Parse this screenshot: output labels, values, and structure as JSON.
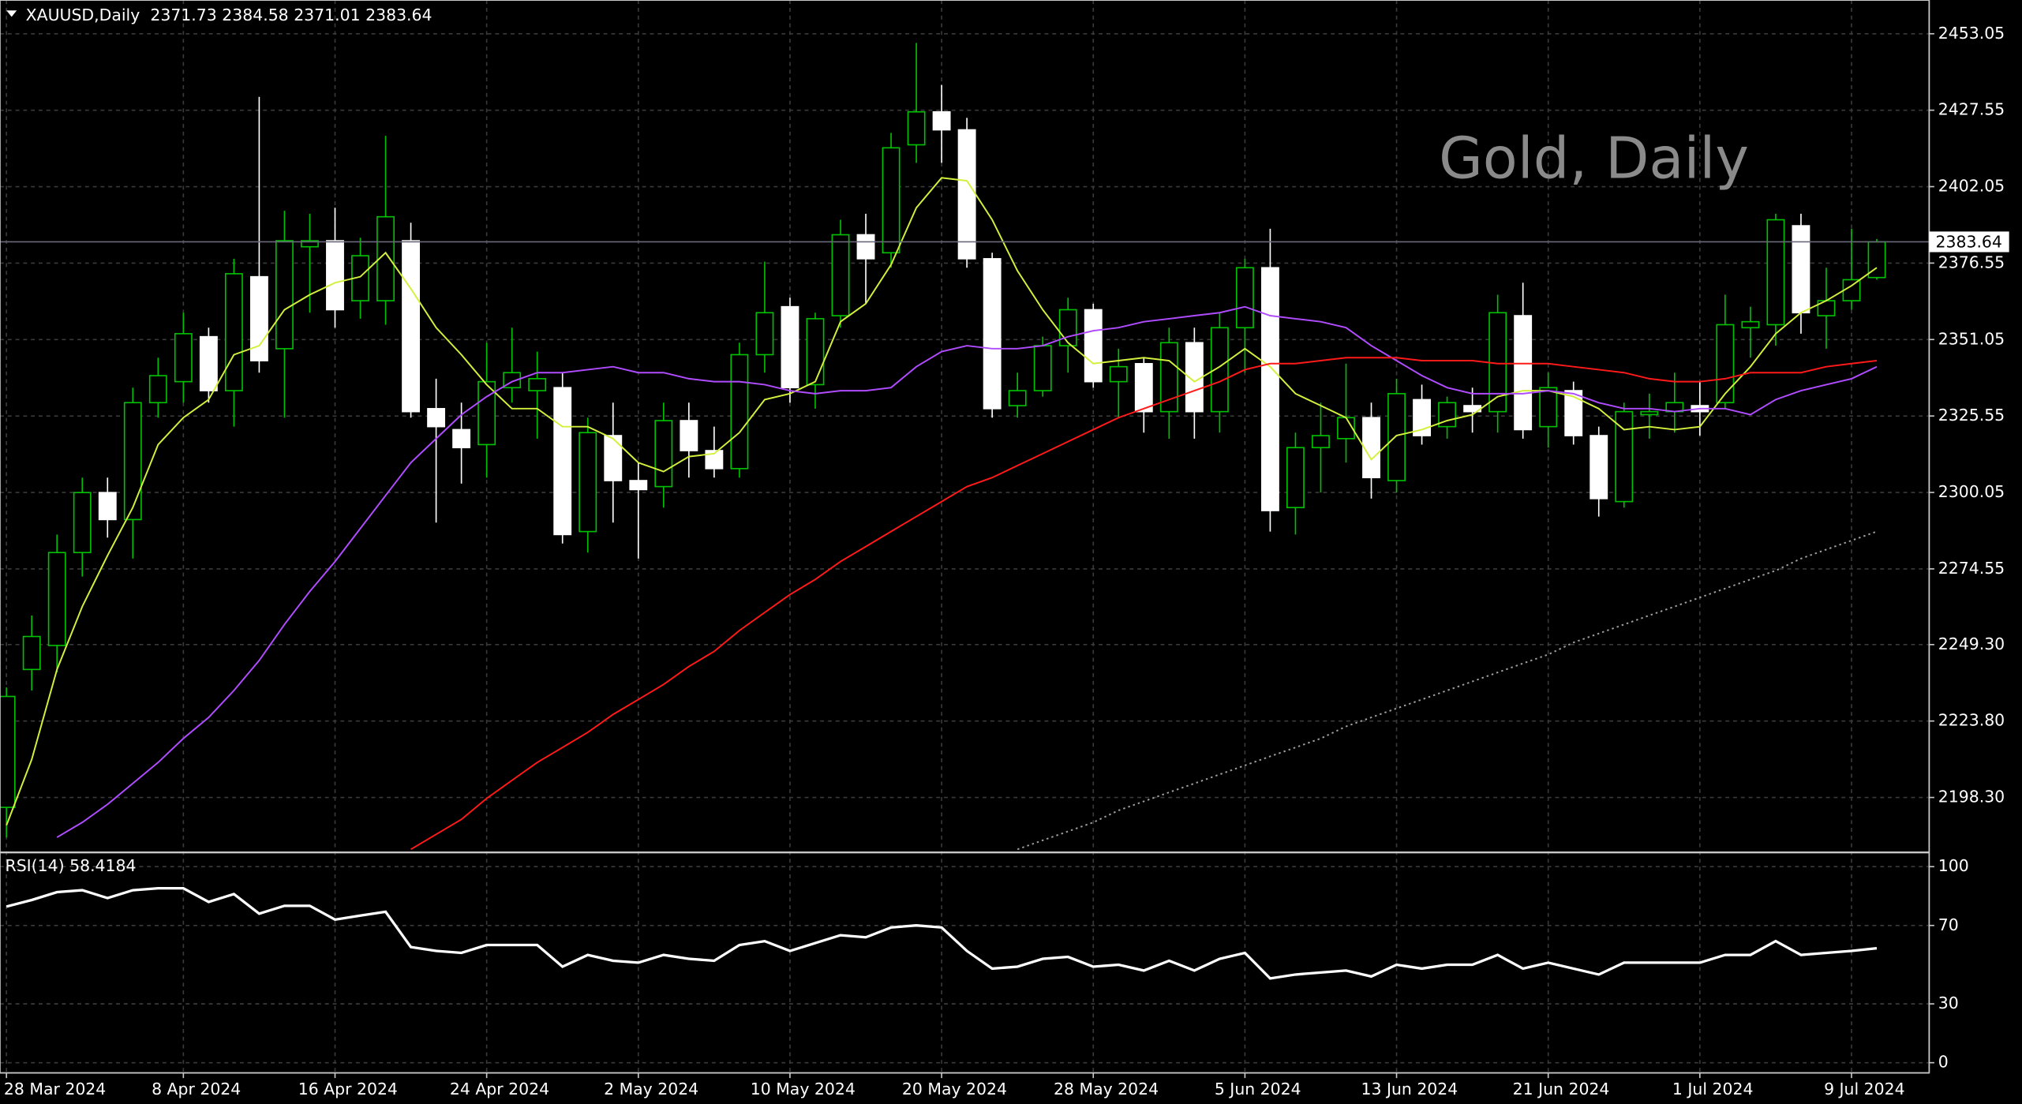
{
  "chart_data": [
    {
      "type": "candlestick",
      "symbol": "XAUUSD,Daily",
      "watermark": "Gold, Daily",
      "categories": [
        "28 Mar 2024",
        null,
        null,
        null,
        null,
        null,
        null,
        "8 Apr 2024",
        null,
        null,
        null,
        null,
        null,
        "16 Apr 2024",
        null,
        null,
        null,
        null,
        null,
        "24 Apr 2024",
        null,
        null,
        null,
        null,
        null,
        "2 May 2024",
        null,
        null,
        null,
        null,
        null,
        "10 May 2024",
        null,
        null,
        null,
        null,
        null,
        "20 May 2024",
        null,
        null,
        null,
        null,
        null,
        "28 May 2024",
        null,
        null,
        null,
        null,
        null,
        "5 Jun 2024",
        null,
        null,
        null,
        null,
        null,
        "13 Jun 2024",
        null,
        null,
        null,
        null,
        null,
        "21 Jun 2024",
        null,
        null,
        null,
        null,
        null,
        "1 Jul 2024",
        null,
        null,
        null,
        null,
        null,
        "9 Jul 2024",
        null
      ],
      "open": [
        2195,
        2241,
        2249,
        2280,
        2300,
        2291,
        2330,
        2337,
        2352,
        2334,
        2372,
        2348,
        2382,
        2384,
        2364,
        2364,
        2384,
        2328,
        2321,
        2316,
        2335,
        2334,
        2335,
        2287,
        2319,
        2304,
        2302,
        2324,
        2314,
        2308,
        2346,
        2362,
        2336,
        2359,
        2386,
        2380,
        2416,
        2427,
        2421,
        2378,
        2329,
        2334,
        2349,
        2361,
        2337,
        2343,
        2327,
        2350,
        2327,
        2355,
        2375,
        2295,
        2315,
        2318,
        2325,
        2304,
        2331,
        2322,
        2329,
        2327,
        2359,
        2322,
        2334,
        2319,
        2297,
        2326,
        2327,
        2329,
        2330,
        2355,
        2356,
        2389,
        2359,
        2364,
        2371.73
      ],
      "high": [
        2235,
        2259,
        2286,
        2305,
        2305,
        2335,
        2345,
        2360,
        2355,
        2378,
        2432,
        2394,
        2393,
        2395,
        2385,
        2419,
        2390,
        2338,
        2330,
        2350,
        2355,
        2347,
        2340,
        2325,
        2330,
        2310,
        2330,
        2330,
        2322,
        2350,
        2377,
        2365,
        2360,
        2391,
        2393,
        2420,
        2450,
        2436,
        2425,
        2380,
        2340,
        2352,
        2365,
        2363,
        2348,
        2345,
        2355,
        2355,
        2360,
        2378,
        2388,
        2320,
        2330,
        2343,
        2330,
        2338,
        2336,
        2332,
        2335,
        2366,
        2370,
        2340,
        2337,
        2322,
        2330,
        2333,
        2340,
        2337,
        2366,
        2362,
        2393,
        2393,
        2375,
        2388,
        2384.58
      ],
      "low": [
        2185,
        2234,
        2240,
        2272,
        2285,
        2278,
        2325,
        2330,
        2330,
        2322,
        2340,
        2325,
        2360,
        2355,
        2358,
        2356,
        2325,
        2290,
        2303,
        2305,
        2330,
        2318,
        2283,
        2280,
        2290,
        2278,
        2295,
        2305,
        2305,
        2305,
        2340,
        2330,
        2328,
        2355,
        2363,
        2375,
        2410,
        2410,
        2375,
        2325,
        2325,
        2332,
        2340,
        2335,
        2325,
        2320,
        2318,
        2318,
        2320,
        2340,
        2287,
        2286,
        2300,
        2310,
        2298,
        2300,
        2316,
        2318,
        2320,
        2320,
        2318,
        2315,
        2316,
        2292,
        2295,
        2318,
        2320,
        2319,
        2328,
        2345,
        2349,
        2353,
        2348,
        2361,
        2371.01
      ],
      "close": [
        2232,
        2252,
        2280,
        2300,
        2291,
        2330,
        2339,
        2353,
        2334,
        2373,
        2344,
        2384,
        2384,
        2361,
        2379,
        2392,
        2327,
        2322,
        2315,
        2337,
        2340,
        2338,
        2286,
        2320,
        2304,
        2301,
        2324,
        2314,
        2308,
        2346,
        2360,
        2335,
        2358,
        2386,
        2378,
        2415,
        2427,
        2421,
        2378,
        2328,
        2334,
        2349,
        2361,
        2337,
        2342,
        2327,
        2350,
        2327,
        2355,
        2375,
        2294,
        2315,
        2319,
        2325,
        2305,
        2333,
        2319,
        2330,
        2327,
        2360,
        2321,
        2335,
        2319,
        2298,
        2327,
        2327,
        2330,
        2327,
        2356,
        2357,
        2391,
        2360,
        2364,
        2371,
        2383.64
      ],
      "up_color": "#00c000",
      "down_color": "#ffffff",
      "series": [
        {
          "color": "#d4f03c",
          "style": "solid",
          "values": [
            2189,
            2211,
            2241,
            2262,
            2279,
            2295,
            2316,
            2325,
            2331,
            2346,
            2349,
            2361,
            2366,
            2370,
            2372,
            2380,
            2368,
            2355,
            2346,
            2336,
            2328,
            2328,
            2322,
            2322,
            2318,
            2310,
            2307,
            2312,
            2313,
            2320,
            2331,
            2333,
            2337,
            2357,
            2363,
            2376,
            2395,
            2405,
            2404,
            2391,
            2374,
            2361,
            2350,
            2343,
            2344,
            2345,
            2344,
            2337,
            2342,
            2348,
            2342,
            2333,
            2329,
            2325,
            2311,
            2319,
            2321,
            2324,
            2326,
            2332,
            2334,
            2334,
            2332,
            2328,
            2321,
            2322,
            2321,
            2322,
            2333,
            2342,
            2353,
            2360,
            2364,
            2369,
            2375
          ]
        },
        {
          "color": "#b04cff",
          "style": "solid",
          "values": [
            null,
            null,
            2185,
            2190,
            2196,
            2203,
            2210,
            2218,
            2225,
            2234,
            2244,
            2256,
            2267,
            2277,
            2288,
            2299,
            2310,
            2318,
            2326,
            2332,
            2337,
            2340,
            2340,
            2341,
            2342,
            2340,
            2340,
            2338,
            2337,
            2337,
            2336,
            2334,
            2333,
            2334,
            2334,
            2335,
            2342,
            2347,
            2349,
            2348,
            2348,
            2349,
            2352,
            2354,
            2355,
            2357,
            2358,
            2359,
            2360,
            2362,
            2359,
            2358,
            2357,
            2355,
            2349,
            2344,
            2339,
            2335,
            2333,
            2333,
            2333,
            2334,
            2333,
            2330,
            2328,
            2328,
            2327,
            2328,
            2328,
            2326,
            2331,
            2334,
            2336,
            2338,
            2342
          ]
        },
        {
          "color": "#ff1a1a",
          "style": "solid",
          "values": [
            null,
            null,
            null,
            null,
            null,
            null,
            null,
            null,
            null,
            null,
            null,
            null,
            null,
            null,
            null,
            null,
            2181,
            2186,
            2191,
            2198,
            2204,
            2210,
            2215,
            2220,
            2226,
            2231,
            2236,
            2242,
            2247,
            2254,
            2260,
            2266,
            2271,
            2277,
            2282,
            2287,
            2292,
            2297,
            2302,
            2305,
            2309,
            2313,
            2317,
            2321,
            2325,
            2328,
            2331,
            2334,
            2337,
            2341,
            2343,
            2343,
            2344,
            2345,
            2345,
            2345,
            2344,
            2344,
            2344,
            2343,
            2343,
            2343,
            2342,
            2341,
            2340,
            2338,
            2337,
            2337,
            2338,
            2340,
            2340,
            2340,
            2342,
            2343,
            2344
          ]
        },
        {
          "color": "#a0a0a0",
          "style": "dotted",
          "values": [
            null,
            null,
            null,
            null,
            null,
            null,
            null,
            null,
            null,
            null,
            null,
            null,
            null,
            null,
            null,
            null,
            null,
            null,
            null,
            null,
            null,
            null,
            null,
            null,
            null,
            null,
            null,
            null,
            null,
            null,
            null,
            null,
            null,
            null,
            null,
            null,
            null,
            null,
            null,
            null,
            2181,
            2184,
            2187,
            2190,
            2194,
            2197,
            2200,
            2203,
            2206,
            2209,
            2212,
            2215,
            2218,
            2222,
            2225,
            2228,
            2231,
            2234,
            2237,
            2240,
            2243,
            2246,
            2250,
            2253,
            2256,
            2259,
            2262,
            2265,
            2268,
            2271,
            2274,
            2278,
            2281,
            2284,
            2287
          ]
        }
      ],
      "ylim": [
        2180.4,
        2463.4
      ],
      "yticks": [
        2453.05,
        2427.55,
        2402.05,
        2376.55,
        2351.05,
        2325.55,
        2300.05,
        2274.55,
        {
          "value": 2249.3,
          "label": "2249.30"
        },
        {
          "value": 2223.8,
          "label": "2223.80"
        },
        {
          "value": 2198.3,
          "label": "2198.30"
        }
      ],
      "grid": true
    },
    {
      "type": "line",
      "title": "RSI(14)",
      "series": [
        {
          "color": "#ffffff",
          "values": [
            79.6,
            83,
            87,
            88,
            84,
            88,
            89,
            89,
            82,
            86,
            76,
            80,
            80,
            73,
            75,
            77,
            59,
            57,
            56,
            60,
            60,
            60,
            49,
            55,
            52,
            51,
            55,
            53,
            52,
            60,
            62,
            57,
            61,
            65,
            64,
            69,
            70,
            69,
            57,
            48,
            49,
            53,
            54,
            49,
            50,
            47,
            52,
            47,
            53,
            56,
            43,
            45,
            46,
            47,
            44,
            50,
            48,
            50,
            50,
            55,
            48,
            51,
            48,
            45,
            51,
            51,
            51,
            51,
            55,
            55,
            62,
            55,
            56,
            57,
            58.4184
          ]
        }
      ],
      "ylim": [
        -3.9,
        106.6
      ],
      "yticks": [
        100,
        70,
        30,
        0
      ],
      "grid": true
    }
  ]
}
